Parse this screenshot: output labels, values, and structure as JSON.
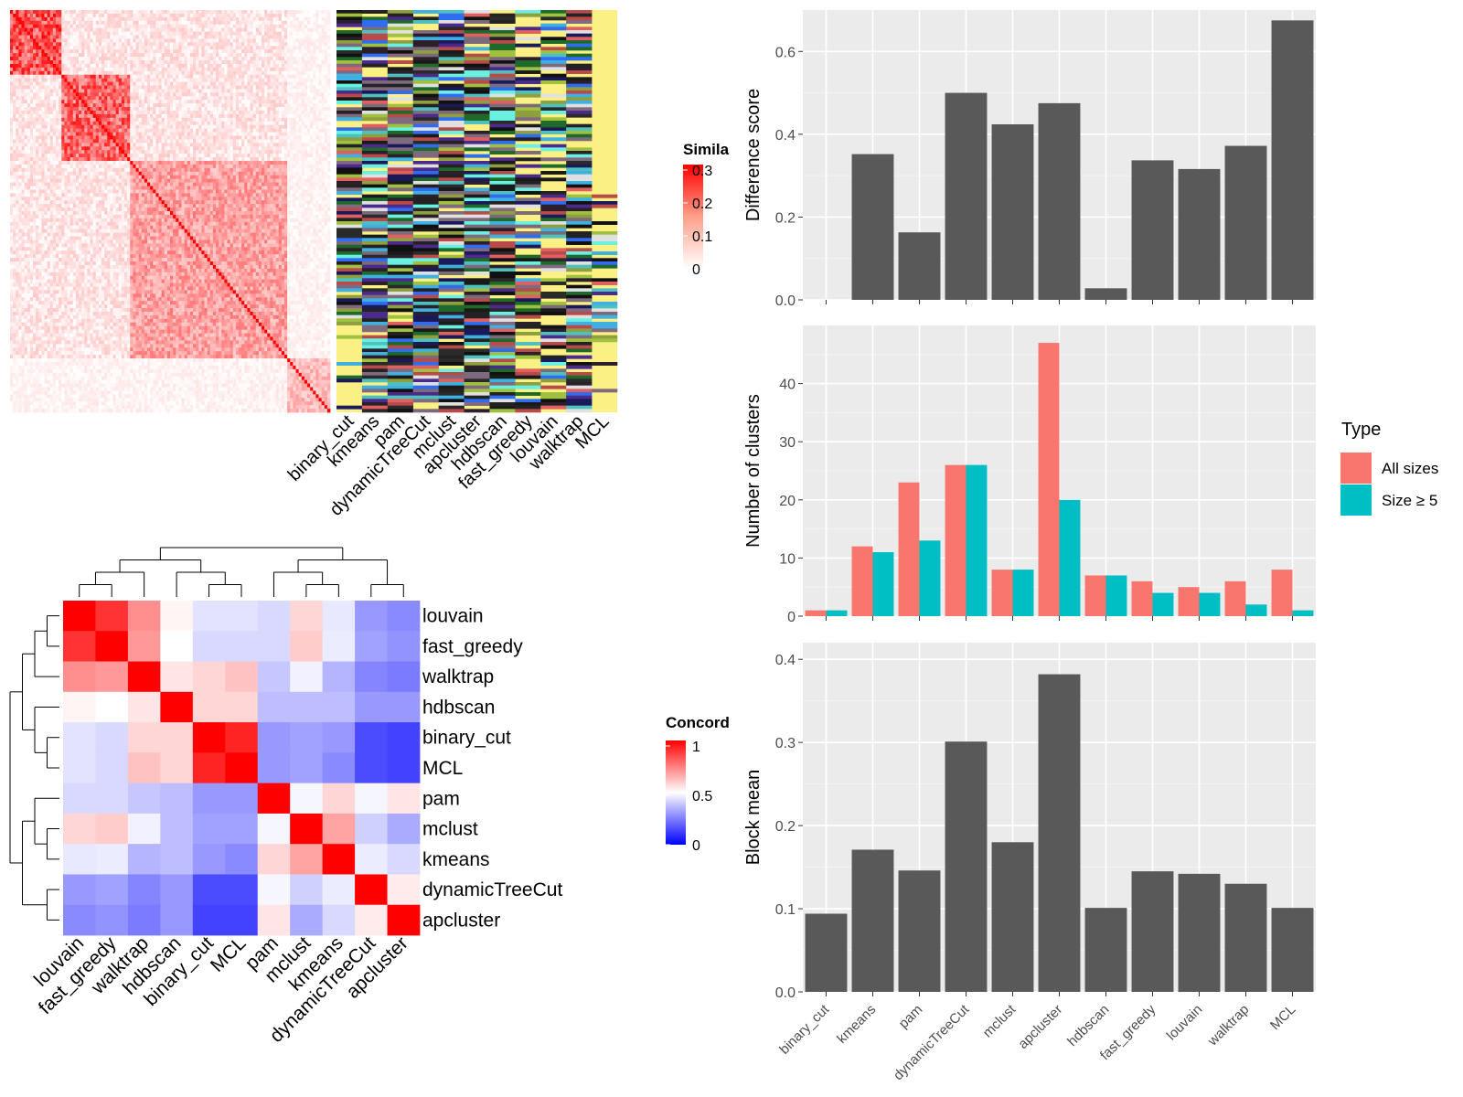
{
  "chart_data": [
    {
      "type": "heatmap",
      "legend_title": "Simila",
      "legend_ticks": [
        "0",
        "0.1",
        "0.2",
        "0.3"
      ],
      "legend_range": [
        0,
        0.3
      ],
      "colors": {
        "low": "#ffffff",
        "high": "#ff0000"
      },
      "block_sizes": [
        18,
        24,
        55,
        15
      ]
    },
    {
      "type": "heatmap",
      "methods": [
        "binary_cut",
        "kmeans",
        "pam",
        "dynamicTreeCut",
        "mclust",
        "apcluster",
        "hdbscan",
        "fast_greedy",
        "louvain",
        "walktrap",
        "MCL"
      ],
      "cell_colors": [
        "#fbf083",
        "#222222",
        "#111111",
        "#1a1a1a",
        "#2f6cf0",
        "#4fc0c0",
        "#7a6a7a",
        "#7f6a7f",
        "#2a1f2a",
        "#1f6a2a",
        "#b84a4a",
        "#3fb0e0",
        "#8f9f3f",
        "#e06060",
        "#4a2a8a",
        "#6af0e0",
        "#1a1a5a",
        "#e0e0e0",
        "#2a2a2a",
        "#a0c040"
      ]
    },
    {
      "type": "heatmap",
      "legend_title": "Concord",
      "legend_ticks": [
        "0",
        "0.5",
        "1"
      ],
      "legend_range": [
        0,
        1
      ],
      "labels": [
        "louvain",
        "fast_greedy",
        "walktrap",
        "hdbscan",
        "binary_cut",
        "MCL",
        "pam",
        "mclust",
        "kmeans",
        "dynamicTreeCut",
        "apcluster"
      ],
      "matrix": [
        [
          1.0,
          0.9,
          0.72,
          0.52,
          0.44,
          0.44,
          0.42,
          0.58,
          0.45,
          0.28,
          0.25
        ],
        [
          0.9,
          1.0,
          0.7,
          0.5,
          0.42,
          0.42,
          0.42,
          0.6,
          0.46,
          0.3,
          0.27
        ],
        [
          0.72,
          0.7,
          1.0,
          0.55,
          0.58,
          0.62,
          0.38,
          0.47,
          0.34,
          0.24,
          0.22
        ],
        [
          0.52,
          0.5,
          0.55,
          1.0,
          0.58,
          0.58,
          0.36,
          0.36,
          0.36,
          0.28,
          0.28
        ],
        [
          0.44,
          0.42,
          0.58,
          0.58,
          1.0,
          0.93,
          0.28,
          0.3,
          0.28,
          0.12,
          0.1
        ],
        [
          0.44,
          0.42,
          0.62,
          0.58,
          0.93,
          1.0,
          0.28,
          0.3,
          0.25,
          0.12,
          0.1
        ],
        [
          0.42,
          0.42,
          0.38,
          0.36,
          0.28,
          0.28,
          1.0,
          0.48,
          0.58,
          0.48,
          0.55
        ],
        [
          0.58,
          0.6,
          0.47,
          0.36,
          0.3,
          0.3,
          0.48,
          1.0,
          0.68,
          0.4,
          0.32
        ],
        [
          0.45,
          0.46,
          0.34,
          0.36,
          0.28,
          0.25,
          0.58,
          0.68,
          1.0,
          0.46,
          0.42
        ],
        [
          0.28,
          0.3,
          0.24,
          0.28,
          0.12,
          0.12,
          0.48,
          0.4,
          0.46,
          1.0,
          0.54
        ],
        [
          0.25,
          0.27,
          0.22,
          0.28,
          0.1,
          0.1,
          0.55,
          0.32,
          0.42,
          0.54,
          1.0
        ]
      ],
      "colors": {
        "low": "#0000ff",
        "mid": "#ffffff",
        "high": "#ff0000"
      }
    },
    {
      "type": "bar",
      "categories": [
        "binary_cut",
        "kmeans",
        "pam",
        "dynamicTreeCut",
        "mclust",
        "apcluster",
        "hdbscan",
        "fast_greedy",
        "louvain",
        "walktrap",
        "MCL"
      ],
      "ylabel": "Difference score",
      "yticks": [
        "0.0",
        "0.2",
        "0.4",
        "0.6"
      ],
      "ylim": [
        0,
        0.7
      ],
      "values": [
        0.0,
        0.352,
        0.163,
        0.5,
        0.424,
        0.475,
        0.028,
        0.337,
        0.316,
        0.372,
        0.675
      ],
      "fill": "#595959"
    },
    {
      "type": "bar",
      "categories": [
        "binary_cut",
        "kmeans",
        "pam",
        "dynamicTreeCut",
        "mclust",
        "apcluster",
        "hdbscan",
        "fast_greedy",
        "louvain",
        "walktrap",
        "MCL"
      ],
      "ylabel": "Number of clusters",
      "yticks": [
        "0",
        "10",
        "20",
        "30",
        "40"
      ],
      "ylim": [
        0,
        50
      ],
      "legend_title": "Type",
      "series": [
        {
          "name": "All sizes",
          "color": "#f8766d",
          "values": [
            1,
            12,
            23,
            26,
            8,
            47,
            7,
            6,
            5,
            6,
            8
          ]
        },
        {
          "name": "Size ≥ 5",
          "color": "#00bfc4",
          "values": [
            1,
            11,
            13,
            26,
            8,
            20,
            7,
            4,
            4,
            2,
            1
          ]
        }
      ]
    },
    {
      "type": "bar",
      "categories": [
        "binary_cut",
        "kmeans",
        "pam",
        "dynamicTreeCut",
        "mclust",
        "apcluster",
        "hdbscan",
        "fast_greedy",
        "louvain",
        "walktrap",
        "MCL"
      ],
      "ylabel": "Block mean",
      "yticks": [
        "0.0",
        "0.1",
        "0.2",
        "0.3",
        "0.4"
      ],
      "ylim": [
        0,
        0.42
      ],
      "values": [
        0.094,
        0.171,
        0.146,
        0.301,
        0.18,
        0.382,
        0.101,
        0.145,
        0.142,
        0.13,
        0.101
      ],
      "fill": "#595959"
    }
  ]
}
